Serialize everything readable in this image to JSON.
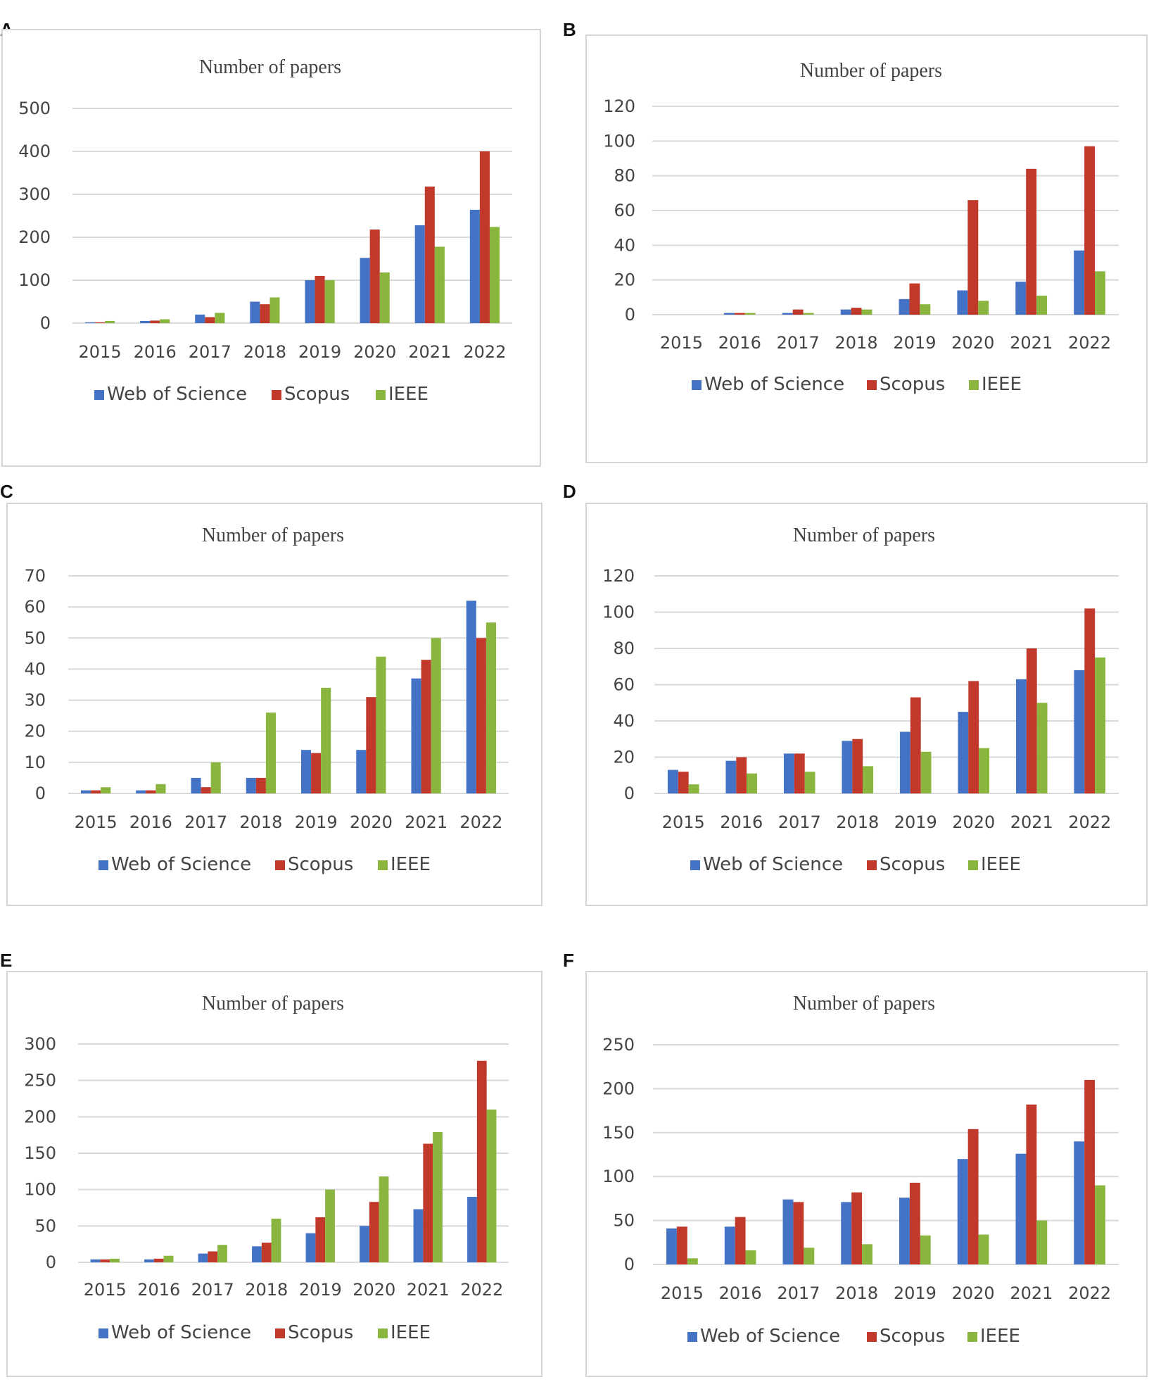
{
  "figure": {
    "colors": {
      "Web of Science": "#4472c4",
      "Scopus": "#c0392b",
      "IEEE": "#8ab53e"
    }
  },
  "chart_data": [
    {
      "panel": "A",
      "type": "bar",
      "title": "Number of papers",
      "categories": [
        "2015",
        "2016",
        "2017",
        "2018",
        "2019",
        "2020",
        "2021",
        "2022"
      ],
      "ylim": [
        0,
        500
      ],
      "yticks": [
        0,
        100,
        200,
        300,
        400,
        500
      ],
      "series": [
        {
          "name": "Web of Science",
          "values": [
            2,
            5,
            20,
            50,
            100,
            152,
            228,
            264
          ]
        },
        {
          "name": "Scopus",
          "values": [
            2,
            6,
            14,
            44,
            110,
            218,
            318,
            400
          ]
        },
        {
          "name": "IEEE",
          "values": [
            5,
            9,
            24,
            60,
            100,
            118,
            178,
            224
          ]
        }
      ],
      "legend": [
        "Web of Science",
        "Scopus",
        "IEEE"
      ],
      "legend_position": "bottom"
    },
    {
      "panel": "B",
      "type": "bar",
      "title": "Number of papers",
      "categories": [
        "2015",
        "2016",
        "2017",
        "2018",
        "2019",
        "2020",
        "2021",
        "2022"
      ],
      "ylim": [
        0,
        120
      ],
      "yticks": [
        0,
        20,
        40,
        60,
        80,
        100,
        120
      ],
      "series": [
        {
          "name": "Web of Science",
          "values": [
            0,
            1,
            1,
            3,
            9,
            14,
            19,
            37
          ]
        },
        {
          "name": "Scopus",
          "values": [
            0,
            1,
            3,
            4,
            18,
            66,
            84,
            97
          ]
        },
        {
          "name": "IEEE",
          "values": [
            0,
            1,
            1,
            3,
            6,
            8,
            11,
            25
          ]
        }
      ],
      "legend": [
        "Web of Science",
        "Scopus",
        "IEEE"
      ],
      "legend_position": "bottom"
    },
    {
      "panel": "C",
      "type": "bar",
      "title": "Number of papers",
      "categories": [
        "2015",
        "2016",
        "2017",
        "2018",
        "2019",
        "2020",
        "2021",
        "2022"
      ],
      "ylim": [
        0,
        70
      ],
      "yticks": [
        0,
        10,
        20,
        30,
        40,
        50,
        60,
        70
      ],
      "series": [
        {
          "name": "Web of Science",
          "values": [
            1,
            1,
            5,
            5,
            14,
            14,
            37,
            62
          ]
        },
        {
          "name": "Scopus",
          "values": [
            1,
            1,
            2,
            5,
            13,
            31,
            43,
            50
          ]
        },
        {
          "name": "IEEE",
          "values": [
            2,
            3,
            10,
            26,
            34,
            44,
            50,
            55
          ]
        }
      ],
      "legend": [
        "Web of Science",
        "Scopus",
        "IEEE"
      ],
      "legend_position": "bottom"
    },
    {
      "panel": "D",
      "type": "bar",
      "title": "Number of papers",
      "categories": [
        "2015",
        "2016",
        "2017",
        "2018",
        "2019",
        "2020",
        "2021",
        "2022"
      ],
      "ylim": [
        0,
        120
      ],
      "yticks": [
        0,
        20,
        40,
        60,
        80,
        100,
        120
      ],
      "series": [
        {
          "name": "Web of Science",
          "values": [
            13,
            18,
            22,
            29,
            34,
            45,
            63,
            68
          ]
        },
        {
          "name": "Scopus",
          "values": [
            12,
            20,
            22,
            30,
            53,
            62,
            80,
            102
          ]
        },
        {
          "name": "IEEE",
          "values": [
            5,
            11,
            12,
            15,
            23,
            25,
            50,
            75
          ]
        }
      ],
      "legend": [
        "Web of Science",
        "Scopus",
        "IEEE"
      ],
      "legend_position": "bottom"
    },
    {
      "panel": "E",
      "type": "bar",
      "title": "Number of papers",
      "categories": [
        "2015",
        "2016",
        "2017",
        "2018",
        "2019",
        "2020",
        "2021",
        "2022"
      ],
      "ylim": [
        0,
        300
      ],
      "yticks": [
        0,
        50,
        100,
        150,
        200,
        250,
        300
      ],
      "series": [
        {
          "name": "Web of Science",
          "values": [
            4,
            4,
            12,
            22,
            40,
            50,
            73,
            90
          ]
        },
        {
          "name": "Scopus",
          "values": [
            4,
            5,
            15,
            27,
            62,
            83,
            163,
            277
          ]
        },
        {
          "name": "IEEE",
          "values": [
            5,
            9,
            24,
            60,
            100,
            118,
            179,
            210
          ]
        }
      ],
      "legend": [
        "Web of Science",
        "Scopus",
        "IEEE"
      ],
      "legend_position": "bottom"
    },
    {
      "panel": "F",
      "type": "bar",
      "title": "Number of papers",
      "categories": [
        "2015",
        "2016",
        "2017",
        "2018",
        "2019",
        "2020",
        "2021",
        "2022"
      ],
      "ylim": [
        0,
        250
      ],
      "yticks": [
        0,
        50,
        100,
        150,
        200,
        250
      ],
      "series": [
        {
          "name": "Web of Science",
          "values": [
            41,
            43,
            74,
            71,
            76,
            120,
            126,
            140
          ]
        },
        {
          "name": "Scopus",
          "values": [
            43,
            54,
            71,
            82,
            93,
            154,
            182,
            210
          ]
        },
        {
          "name": "IEEE",
          "values": [
            7,
            16,
            19,
            23,
            33,
            34,
            50,
            90
          ]
        }
      ],
      "legend": [
        "Web of Science",
        "Scopus",
        "IEEE"
      ],
      "legend_position": "bottom"
    }
  ]
}
